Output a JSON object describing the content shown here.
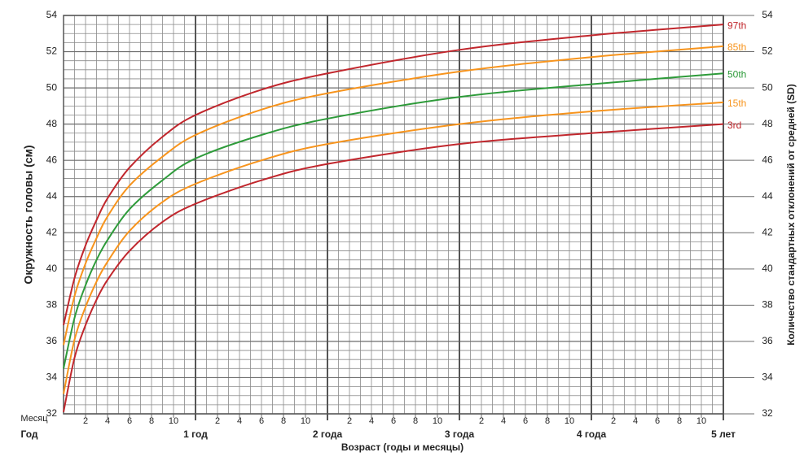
{
  "chart_data": {
    "type": "line",
    "y_axis_title": "Окружность головы (см)",
    "y2_axis_title": "Количество стандартных отклонений от средней (SD)",
    "x_axis_title": "Возраст (годы и месяцы)",
    "month_row_label": "Месяц",
    "year_row_label": "Год",
    "xlim": [
      0,
      60
    ],
    "ylim": [
      32,
      54
    ],
    "y2lim": [
      32,
      54
    ],
    "yticks": [
      32,
      34,
      36,
      38,
      40,
      42,
      44,
      46,
      48,
      50,
      52,
      54
    ],
    "y2ticks": [
      32,
      34,
      36,
      38,
      40,
      42,
      44,
      46,
      48,
      50,
      52,
      54
    ],
    "xticks": [
      {
        "value": 2,
        "label": "2"
      },
      {
        "value": 4,
        "label": "4"
      },
      {
        "value": 6,
        "label": "6"
      },
      {
        "value": 8,
        "label": "8"
      },
      {
        "value": 10,
        "label": "10"
      },
      {
        "value": 14,
        "label": "2"
      },
      {
        "value": 16,
        "label": "4"
      },
      {
        "value": 18,
        "label": "6"
      },
      {
        "value": 20,
        "label": "8"
      },
      {
        "value": 22,
        "label": "10"
      },
      {
        "value": 26,
        "label": "2"
      },
      {
        "value": 28,
        "label": "4"
      },
      {
        "value": 30,
        "label": "6"
      },
      {
        "value": 32,
        "label": "8"
      },
      {
        "value": 34,
        "label": "10"
      },
      {
        "value": 38,
        "label": "2"
      },
      {
        "value": 40,
        "label": "4"
      },
      {
        "value": 42,
        "label": "6"
      },
      {
        "value": 44,
        "label": "8"
      },
      {
        "value": 46,
        "label": "10"
      },
      {
        "value": 50,
        "label": "2"
      },
      {
        "value": 52,
        "label": "4"
      },
      {
        "value": 54,
        "label": "6"
      },
      {
        "value": 56,
        "label": "8"
      },
      {
        "value": 58,
        "label": "10"
      }
    ],
    "year_ticks": [
      {
        "value": 12,
        "label": "1 год"
      },
      {
        "value": 24,
        "label": "2 года"
      },
      {
        "value": 36,
        "label": "3 года"
      },
      {
        "value": 48,
        "label": "4 года"
      },
      {
        "value": 60,
        "label": "5 лет"
      }
    ],
    "grid": true,
    "x": [
      0,
      1,
      2,
      3,
      4,
      6,
      9,
      12,
      18,
      24,
      36,
      48,
      60
    ],
    "series": [
      {
        "name": "97th",
        "color": "#c1272d",
        "values": [
          36.9,
          39.5,
          41.3,
          42.7,
          43.9,
          45.6,
          47.3,
          48.5,
          49.9,
          50.8,
          52.1,
          52.9,
          53.5
        ]
      },
      {
        "name": "85th",
        "color": "#f7941d",
        "values": [
          35.8,
          38.5,
          40.3,
          41.7,
          42.9,
          44.6,
          46.2,
          47.4,
          48.8,
          49.7,
          50.9,
          51.7,
          52.3
        ]
      },
      {
        "name": "50th",
        "color": "#2e9b3a",
        "values": [
          34.5,
          37.3,
          39.1,
          40.5,
          41.6,
          43.3,
          44.9,
          46.1,
          47.4,
          48.3,
          49.5,
          50.2,
          50.8
        ]
      },
      {
        "name": "15th",
        "color": "#f7941d",
        "values": [
          33.1,
          36.1,
          37.9,
          39.3,
          40.4,
          42.1,
          43.7,
          44.7,
          46.0,
          46.9,
          48.0,
          48.7,
          49.2
        ]
      },
      {
        "name": "3rd",
        "color": "#c1272d",
        "values": [
          32.1,
          35.1,
          36.9,
          38.3,
          39.4,
          41.0,
          42.6,
          43.6,
          44.9,
          45.8,
          46.9,
          47.5,
          48.0
        ]
      }
    ]
  }
}
